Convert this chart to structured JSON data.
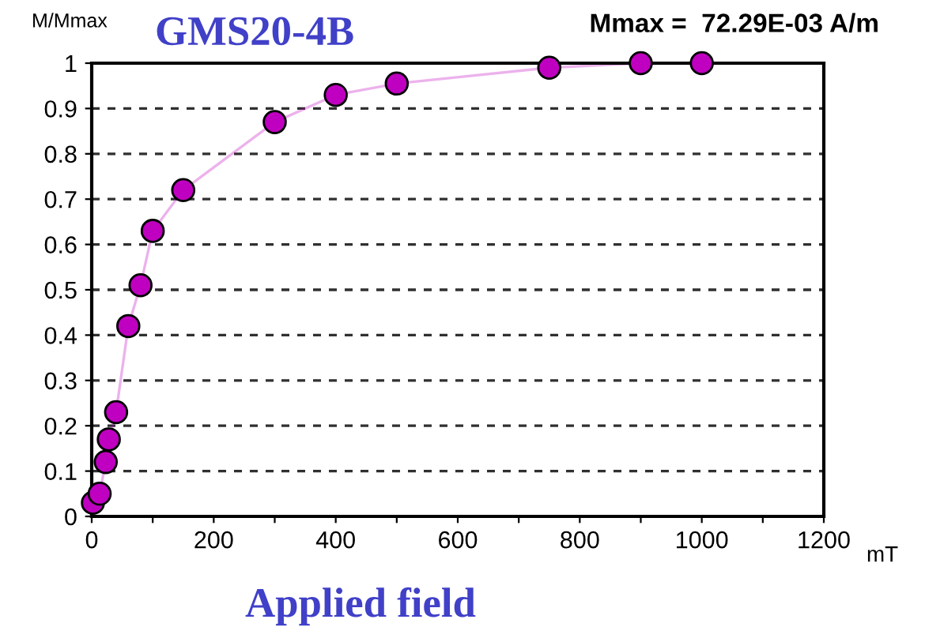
{
  "chart_data": {
    "type": "line",
    "title": "GMS20-4B",
    "subtitle": "Mmax =  72.29E-03 A/m",
    "ylabel": "M/Mmax",
    "xlabel": "Applied field",
    "annotations": [
      "mT"
    ],
    "x": [
      2,
      13,
      23,
      28,
      40,
      60,
      80,
      100,
      150,
      300,
      400,
      500,
      750,
      900,
      1000
    ],
    "series": [
      {
        "color": "#c000c0",
        "values": [
          0.03,
          0.05,
          0.12,
          0.17,
          0.23,
          0.42,
          0.51,
          0.63,
          0.72,
          0.87,
          0.93,
          0.955,
          0.99,
          1.0,
          1.0
        ]
      }
    ],
    "marker": "circle",
    "xlim": [
      0,
      1200
    ],
    "ylim": [
      0,
      1
    ],
    "xticks": [
      0,
      {
        "value": 100,
        "label": null
      },
      200,
      {
        "value": 300,
        "label": null
      },
      400,
      {
        "value": 500,
        "label": null
      },
      600,
      {
        "value": 700,
        "label": null
      },
      800,
      {
        "value": 900,
        "label": null
      },
      1000,
      {
        "value": 1100,
        "label": null
      },
      1200
    ],
    "yticks": [
      0,
      0.1,
      0.2,
      0.3,
      0.4,
      0.5,
      0.6,
      0.7,
      0.8,
      0.9,
      1
    ],
    "grid": "y"
  }
}
